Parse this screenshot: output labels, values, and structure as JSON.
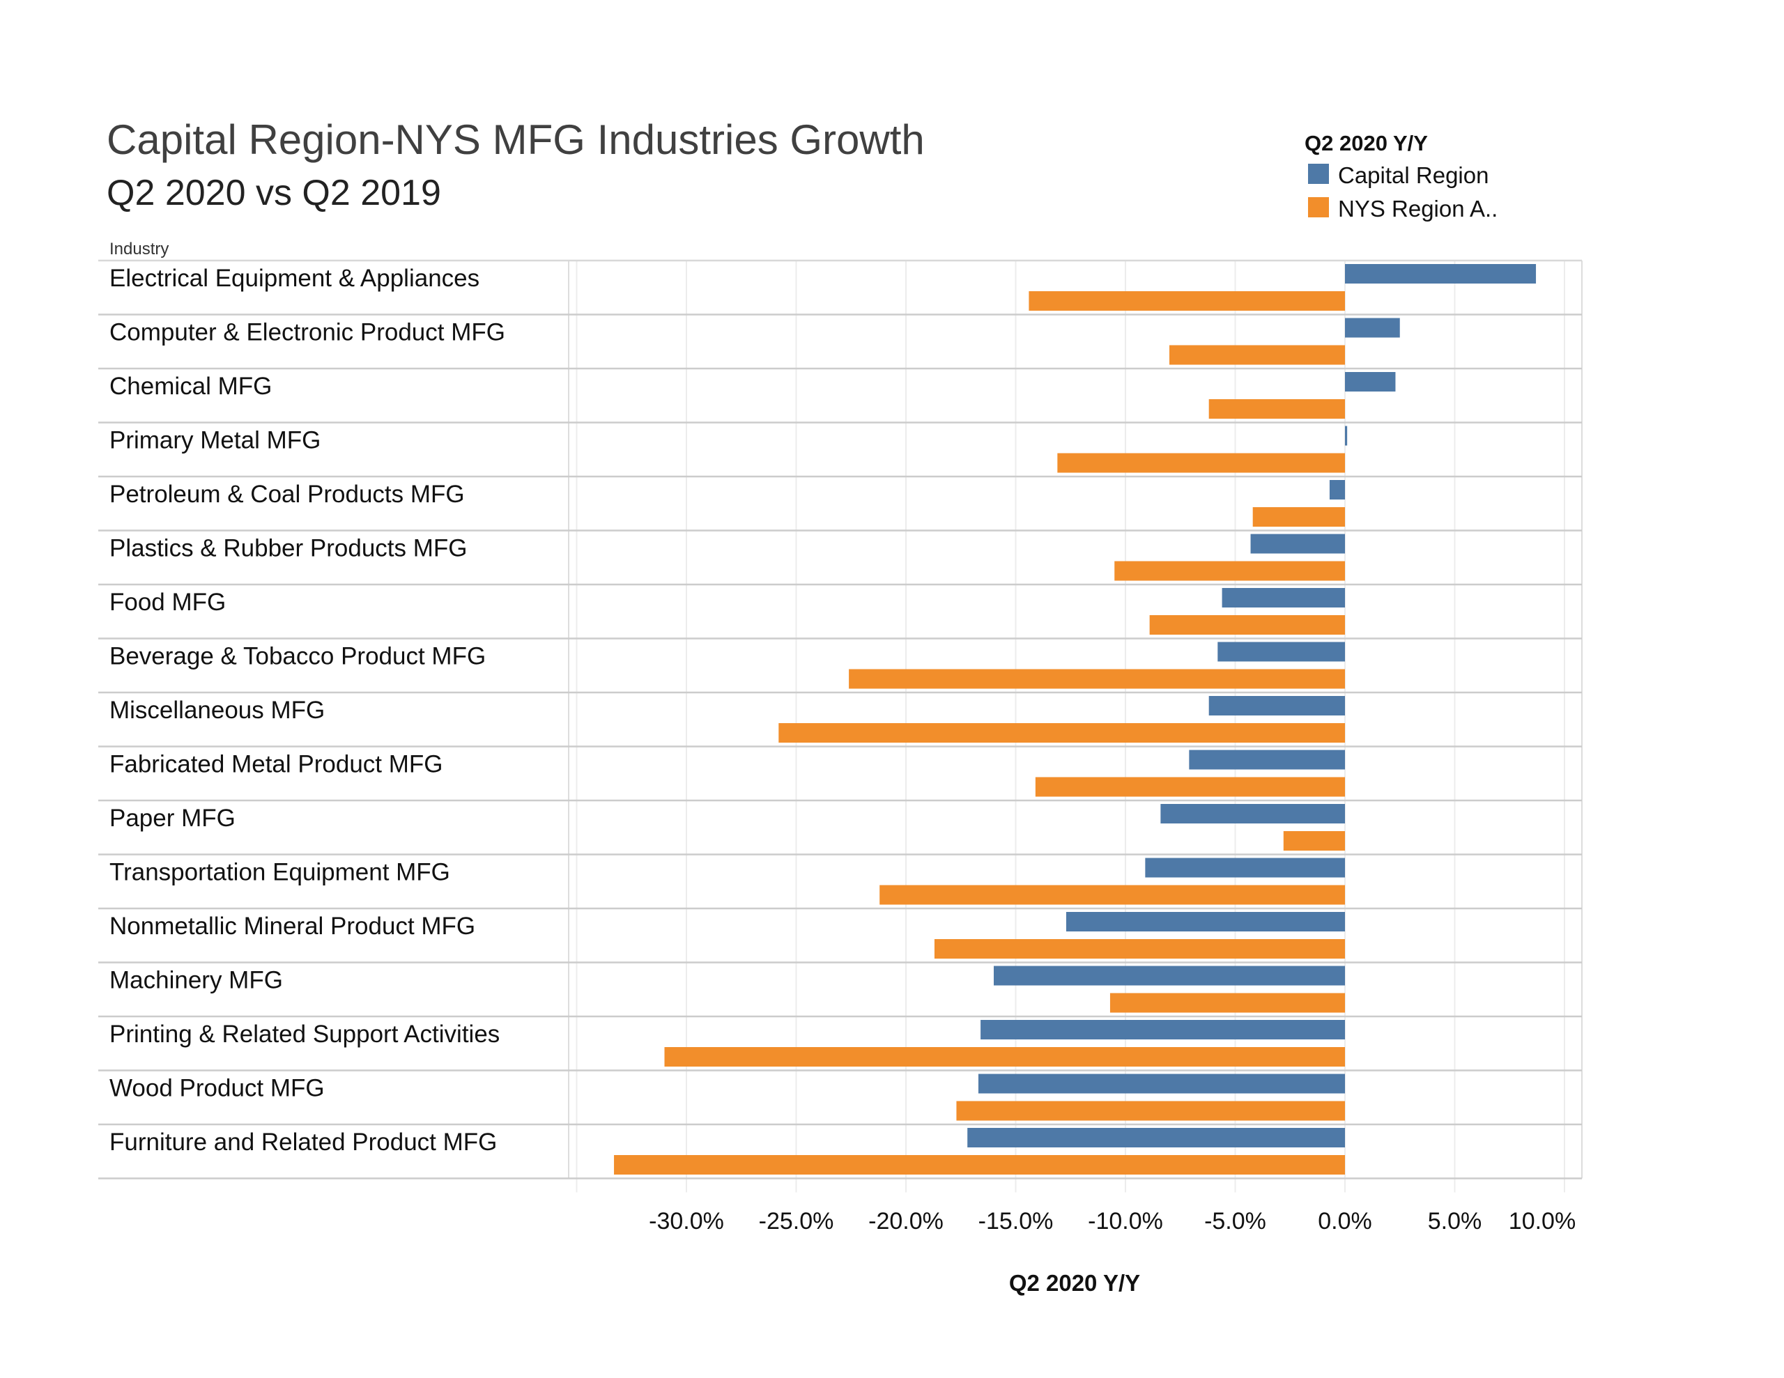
{
  "chart_data": {
    "type": "bar",
    "orientation": "horizontal",
    "title": "Capital Region-NYS MFG Industries Growth",
    "subtitle": "Q2 2020 vs Q2 2019",
    "row_header": "Industry",
    "xlabel": "Q2 2020 Y/Y",
    "ylabel": "Industry",
    "xlim": [
      -35.3,
      10.8
    ],
    "x_ticks": [
      -30,
      -25,
      -20,
      -15,
      -10,
      -5,
      0,
      5,
      10
    ],
    "x_tick_labels": [
      "-30.0%",
      "-25.0%",
      "-20.0%",
      "-15.0%",
      "-10.0%",
      "-5.0%",
      "0.0%",
      "5.0%",
      "10.0%"
    ],
    "grid": "vertical",
    "legend": {
      "title": "Q2 2020 Y/Y",
      "position": "top-right",
      "entries": [
        "Capital Region",
        "NYS Region A.."
      ]
    },
    "categories": [
      "Electrical Equipment & Appliances",
      "Computer &  Electronic Product MFG",
      "Chemical MFG",
      "Primary Metal MFG",
      "Petroleum & Coal Products MFG",
      "Plastics & Rubber Products MFG",
      "Food MFG",
      "Beverage & Tobacco Product MFG",
      "Miscellaneous MFG",
      "Fabricated Metal Product MFG",
      "Paper MFG",
      "Transportation Equipment MFG",
      "Nonmetallic Mineral Product MFG",
      "Machinery MFG",
      "Printing & Related Support Activities",
      "Wood Product MFG",
      "Furniture and Related Product MFG"
    ],
    "series": [
      {
        "name": "Capital Region",
        "color": "#4e79a7",
        "values": [
          8.7,
          2.5,
          2.3,
          0.1,
          -0.7,
          -4.3,
          -5.6,
          -5.8,
          -6.2,
          -7.1,
          -8.4,
          -9.1,
          -12.7,
          -16.0,
          -16.6,
          -16.7,
          -17.2
        ]
      },
      {
        "name": "NYS Region A..",
        "color": "#f28e2b",
        "values": [
          -14.4,
          -8.0,
          -6.2,
          -13.1,
          -4.2,
          -10.5,
          -8.9,
          -22.6,
          -25.8,
          -14.1,
          -2.8,
          -21.2,
          -18.7,
          -10.7,
          -31.0,
          -17.7,
          -33.3
        ]
      }
    ],
    "units": "percent"
  }
}
